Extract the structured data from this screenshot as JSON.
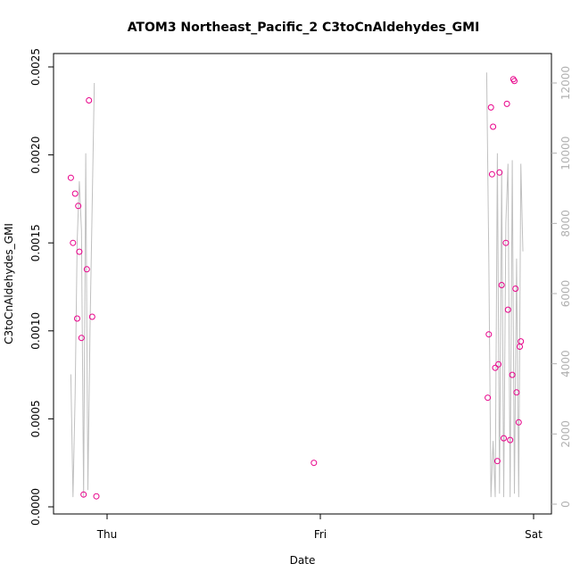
{
  "chart_data": {
    "type": "scatter",
    "title": "ATOM3 Northeast_Pacific_2 C3toCnAldehydes_GMI",
    "xlabel": "Date",
    "ylabel": "C3toCnAldehydes_GMI",
    "x_ticks": [
      "Thu",
      "Fri",
      "Sat"
    ],
    "y_ticks": [
      "0.0000",
      "0.0005",
      "0.0010",
      "0.0015",
      "0.0020",
      "0.0025"
    ],
    "y2_ticks": [
      "0",
      "2000",
      "4000",
      "6000",
      "8000",
      "10000",
      "12000"
    ],
    "ylim": [
      0,
      0.0025
    ],
    "y2lim": [
      -200,
      12200
    ],
    "xlim": [
      -0.2,
      2.05
    ],
    "colors": {
      "points": "#e8008a",
      "line": "#c0c0c0",
      "right_axis": "#b0b0b0"
    },
    "series": [
      {
        "kind": "points",
        "axis": "left",
        "x": [
          -0.17,
          -0.16,
          -0.15,
          -0.14,
          -0.135,
          -0.13,
          -0.12,
          -0.11,
          -0.095,
          -0.085,
          -0.07,
          -0.05,
          0.97,
          1.785,
          1.79,
          1.8,
          1.805,
          1.81,
          1.82,
          1.83,
          1.835,
          1.84,
          1.85,
          1.86,
          1.87,
          1.875,
          1.88,
          1.89,
          1.9,
          1.905,
          1.91,
          1.915,
          1.92,
          1.93,
          1.935,
          1.94
        ],
        "y": [
          0.00187,
          0.0015,
          0.00178,
          0.00107,
          0.00171,
          0.00145,
          0.00096,
          7e-05,
          0.00135,
          0.00231,
          0.00108,
          6e-05,
          0.00025,
          0.00062,
          0.00098,
          0.00227,
          0.00189,
          0.00216,
          0.00079,
          0.00026,
          0.00081,
          0.0019,
          0.00126,
          0.00039,
          0.0015,
          0.00229,
          0.00112,
          0.00038,
          0.00075,
          0.00243,
          0.00242,
          0.00124,
          0.00065,
          0.00048,
          0.00091,
          0.00094
        ]
      },
      {
        "kind": "line",
        "axis": "right",
        "x": [
          -0.17,
          -0.16,
          -0.15,
          -0.14,
          -0.13,
          -0.12,
          -0.11,
          -0.1,
          -0.09,
          -0.08,
          -0.06,
          0.97,
          1.78,
          1.79,
          1.8,
          1.81,
          1.82,
          1.83,
          1.84,
          1.85,
          1.86,
          1.87,
          1.88,
          1.89,
          1.9,
          1.91,
          1.92,
          1.93,
          1.94,
          1.95
        ],
        "y": [
          3700,
          200,
          3100,
          7500,
          9200,
          7800,
          200,
          10000,
          400,
          5000,
          12000,
          null,
          12300,
          7000,
          200,
          1800,
          200,
          10000,
          300,
          9500,
          200,
          8000,
          9700,
          200,
          9800,
          300,
          7000,
          200,
          9700,
          7200
        ]
      }
    ]
  }
}
